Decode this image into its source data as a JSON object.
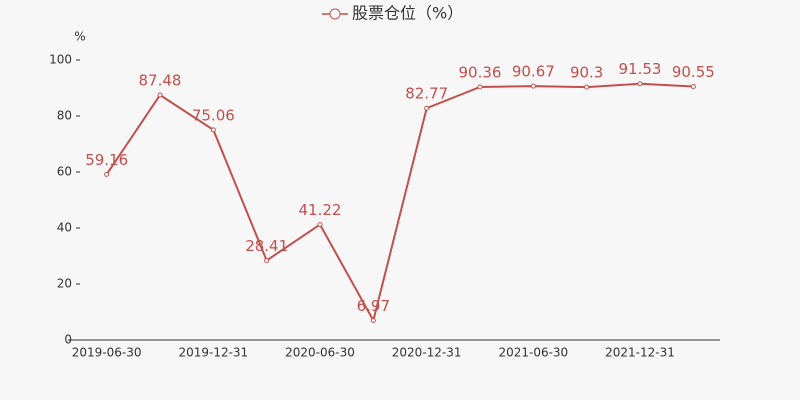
{
  "chart_data": {
    "type": "line",
    "y_label": "%",
    "categories": [
      "2019-06-30",
      null,
      "2019-12-31",
      null,
      "2020-06-30",
      null,
      "2020-12-31",
      null,
      "2021-06-30",
      null,
      "2021-12-31",
      null
    ],
    "series": [
      {
        "name": "股票仓位（%）",
        "color": "#c0504d",
        "values": [
          59.16,
          87.48,
          75.06,
          28.41,
          41.22,
          6.97,
          82.77,
          90.36,
          90.67,
          90.3,
          91.53,
          90.55
        ]
      }
    ],
    "ylim": [
      0,
      100
    ],
    "yticks": [
      0,
      20,
      40,
      60,
      80,
      100
    ],
    "grid": false
  }
}
